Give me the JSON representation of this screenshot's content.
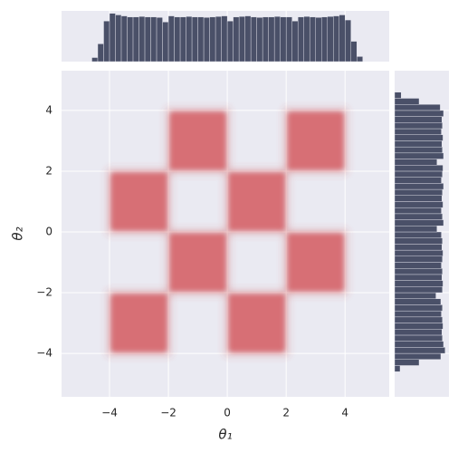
{
  "chart_data": {
    "type": "jointplot",
    "x_label": "θ₁",
    "y_label": "θ₂",
    "xlim": [
      -5.63,
      5.5
    ],
    "ylim": [
      -5.43,
      5.31
    ],
    "xticks": [
      {
        "value": -4,
        "label": "−4"
      },
      {
        "value": -2,
        "label": "−2"
      },
      0,
      2,
      4
    ],
    "yticks": [
      {
        "value": -4,
        "label": "−4"
      },
      {
        "value": -2,
        "label": "−2"
      },
      0,
      2,
      4
    ],
    "grid": true,
    "color": "#d0484d",
    "cells": [
      {
        "x": [
          -2,
          0
        ],
        "y": [
          2,
          4
        ]
      },
      {
        "x": [
          2,
          4
        ],
        "y": [
          2,
          4
        ]
      },
      {
        "x": [
          -4,
          -2
        ],
        "y": [
          0,
          2
        ]
      },
      {
        "x": [
          0,
          2
        ],
        "y": [
          0,
          2
        ]
      },
      {
        "x": [
          -2,
          0
        ],
        "y": [
          -2,
          0
        ]
      },
      {
        "x": [
          2,
          4
        ],
        "y": [
          -2,
          0
        ]
      },
      {
        "x": [
          -4,
          -2
        ],
        "y": [
          -4,
          -2
        ]
      },
      {
        "x": [
          0,
          2
        ],
        "y": [
          -4,
          -2
        ]
      }
    ],
    "hist_color": "#4a5068",
    "hist_lim": [
      0,
      100
    ],
    "bins": [
      -4.6,
      -4.4,
      -4.2,
      -4.0,
      -3.8,
      -3.6,
      -3.4,
      -3.2,
      -3.0,
      -2.8,
      -2.6,
      -2.4,
      -2.2,
      -2.0,
      -1.8,
      -1.6,
      -1.4,
      -1.2,
      -1.0,
      -0.8,
      -0.6,
      -0.4,
      -0.2,
      0.0,
      0.2,
      0.4,
      0.6,
      0.8,
      1.0,
      1.2,
      1.4,
      1.6,
      1.8,
      2.0,
      2.2,
      2.4,
      2.6,
      2.8,
      3.0,
      3.2,
      3.4,
      3.6,
      3.8,
      4.0,
      4.2,
      4.4,
      4.6
    ],
    "x_counts": [
      8,
      35,
      80,
      95,
      92,
      90,
      88,
      88,
      89,
      88,
      88,
      87,
      78,
      90,
      88,
      88,
      89,
      88,
      88,
      87,
      88,
      89,
      90,
      80,
      88,
      89,
      90,
      88,
      87,
      88,
      88,
      89,
      88,
      88,
      80,
      88,
      89,
      88,
      87,
      88,
      89,
      90,
      92,
      82,
      40,
      10
    ],
    "y_counts": [
      10,
      45,
      85,
      93,
      90,
      88,
      87,
      89,
      88,
      86,
      88,
      85,
      76,
      88,
      89,
      87,
      88,
      86,
      88,
      89,
      87,
      88,
      86,
      78,
      90,
      88,
      86,
      89,
      87,
      88,
      90,
      86,
      88,
      89,
      78,
      90,
      88,
      87,
      89,
      86,
      88,
      87,
      90,
      84,
      45,
      12
    ]
  }
}
